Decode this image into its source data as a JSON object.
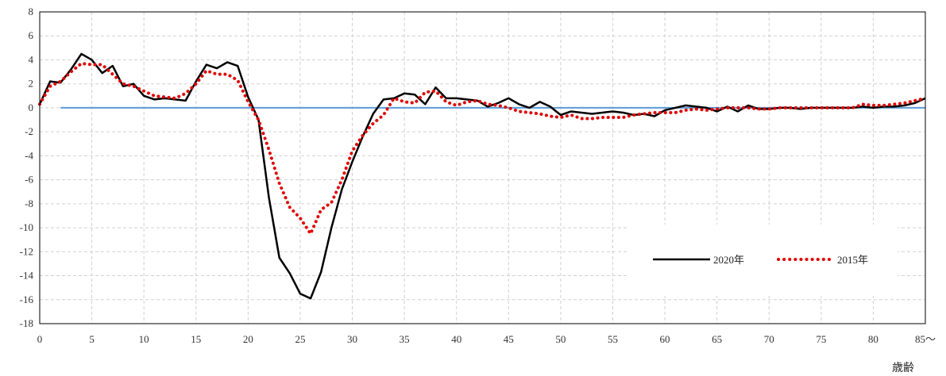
{
  "chart_data": {
    "type": "line",
    "title": "",
    "xlabel": "歳齢",
    "ylabel": "",
    "xlim": [
      0,
      85
    ],
    "ylim": [
      -18,
      8
    ],
    "x_ticks": [
      "0",
      "5",
      "10",
      "15",
      "20",
      "25",
      "30",
      "35",
      "40",
      "45",
      "50",
      "55",
      "60",
      "65",
      "70",
      "75",
      "80",
      "85～"
    ],
    "y_ticks": [
      "8",
      "6",
      "4",
      "2",
      "0",
      "-2",
      "-4",
      "-6",
      "-8",
      "-10",
      "-12",
      "-14",
      "-16",
      "-18"
    ],
    "grid": true,
    "legend_position": "bottom-right",
    "reference_line": {
      "y": 0,
      "x_start": 2,
      "x_end": 85,
      "color": "#5b9bd5"
    },
    "series": [
      {
        "name": "2020年",
        "style": "solid",
        "color": "#000000",
        "x": [
          0,
          1,
          2,
          3,
          4,
          5,
          6,
          7,
          8,
          9,
          10,
          11,
          12,
          13,
          14,
          15,
          16,
          17,
          18,
          19,
          20,
          21,
          22,
          23,
          24,
          25,
          26,
          27,
          28,
          29,
          30,
          31,
          32,
          33,
          34,
          35,
          36,
          37,
          38,
          39,
          40,
          41,
          42,
          43,
          44,
          45,
          46,
          47,
          48,
          49,
          50,
          51,
          52,
          53,
          54,
          55,
          56,
          57,
          58,
          59,
          60,
          61,
          62,
          63,
          64,
          65,
          66,
          67,
          68,
          69,
          70,
          71,
          72,
          73,
          74,
          75,
          76,
          77,
          78,
          79,
          80,
          81,
          82,
          83,
          84,
          85
        ],
        "values": [
          0.3,
          2.2,
          2.1,
          3.2,
          4.5,
          4.0,
          2.9,
          3.5,
          1.8,
          2.0,
          1.0,
          0.7,
          0.8,
          0.7,
          0.6,
          2.2,
          3.6,
          3.3,
          3.8,
          3.5,
          0.9,
          -1.0,
          -7.5,
          -12.5,
          -13.8,
          -15.5,
          -15.9,
          -13.7,
          -10.0,
          -6.8,
          -4.5,
          -2.4,
          -0.5,
          0.7,
          0.8,
          1.2,
          1.1,
          0.3,
          1.7,
          0.8,
          0.8,
          0.7,
          0.6,
          0.1,
          0.4,
          0.8,
          0.3,
          0.0,
          0.5,
          0.1,
          -0.6,
          -0.3,
          -0.4,
          -0.5,
          -0.4,
          -0.3,
          -0.4,
          -0.6,
          -0.5,
          -0.7,
          -0.2,
          0.0,
          0.2,
          0.1,
          0.0,
          -0.3,
          0.1,
          -0.3,
          0.2,
          -0.1,
          -0.1,
          0.0,
          0.0,
          -0.1,
          0.0,
          0.0,
          0.0,
          0.0,
          0.0,
          0.1,
          0.0,
          0.1,
          0.1,
          0.2,
          0.4,
          0.8
        ]
      },
      {
        "name": "2015年",
        "style": "dotted",
        "color": "#e00000",
        "x": [
          0,
          1,
          2,
          3,
          4,
          5,
          6,
          7,
          8,
          9,
          10,
          11,
          12,
          13,
          14,
          15,
          16,
          17,
          18,
          19,
          20,
          21,
          22,
          23,
          24,
          25,
          26,
          27,
          28,
          29,
          30,
          31,
          32,
          33,
          34,
          35,
          36,
          37,
          38,
          39,
          40,
          41,
          42,
          43,
          44,
          45,
          46,
          47,
          48,
          49,
          50,
          51,
          52,
          53,
          54,
          55,
          56,
          57,
          58,
          59,
          60,
          61,
          62,
          63,
          64,
          65,
          66,
          67,
          68,
          69,
          70,
          71,
          72,
          73,
          74,
          75,
          76,
          77,
          78,
          79,
          80,
          81,
          82,
          83,
          84,
          85
        ],
        "values": [
          0.3,
          1.8,
          2.2,
          3.0,
          3.7,
          3.6,
          3.6,
          2.8,
          2.0,
          1.8,
          1.4,
          1.0,
          0.9,
          0.8,
          1.2,
          2.0,
          3.1,
          2.8,
          2.8,
          2.3,
          0.5,
          -1.0,
          -3.5,
          -6.3,
          -8.3,
          -9.2,
          -10.5,
          -8.5,
          -7.9,
          -6.0,
          -3.6,
          -2.3,
          -1.3,
          -0.6,
          0.8,
          0.5,
          0.4,
          1.3,
          1.4,
          0.5,
          0.2,
          0.5,
          0.6,
          0.3,
          0.2,
          0.0,
          -0.3,
          -0.4,
          -0.5,
          -0.7,
          -0.8,
          -0.6,
          -0.9,
          -0.9,
          -0.8,
          -0.8,
          -0.8,
          -0.6,
          -0.5,
          -0.4,
          -0.4,
          -0.4,
          -0.2,
          -0.1,
          -0.2,
          -0.1,
          0.0,
          0.0,
          0.0,
          -0.1,
          -0.1,
          0.0,
          0.0,
          0.0,
          0.0,
          0.0,
          0.0,
          0.0,
          0.0,
          0.3,
          0.2,
          0.2,
          0.3,
          0.4,
          0.6,
          0.8
        ]
      }
    ]
  }
}
